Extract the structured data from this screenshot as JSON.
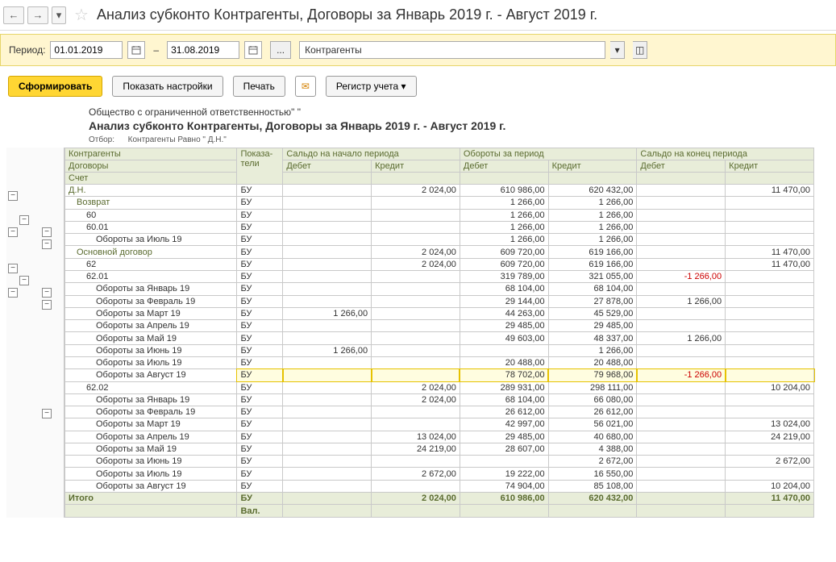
{
  "colors": {
    "header_bg": "#e8edd9",
    "header_text": "#5a6b2f",
    "neg": "#cc0000",
    "highlight_bg": "#fffde0",
    "highlight_border": "#e6c200",
    "filter_bg": "#fff6d0",
    "border": "#c9c9c9"
  },
  "nav": {
    "back": "←",
    "forward": "→",
    "dropdown": "▾"
  },
  "page_title": "Анализ субконто Контрагенты, Договоры за Январь 2019 г. - Август 2019 г.",
  "filter": {
    "period_label": "Период:",
    "date_from": "01.01.2019",
    "dash": "–",
    "date_to": "31.08.2019",
    "select_value": "Контрагенты"
  },
  "actions": {
    "form": "Сформировать",
    "settings": "Показать настройки",
    "print": "Печать",
    "register": "Регистр учета"
  },
  "report": {
    "org": "Общество с ограниченной ответственностью\"      \"",
    "title": "Анализ субконто Контрагенты, Договоры за Январь 2019 г. - Август 2019 г.",
    "filter_label": "Отбор:",
    "filter_value": "Контрагенты Равно \"           Д.Н.\""
  },
  "headers": {
    "col1_r1": "Контрагенты",
    "col1_r2": "Договоры",
    "col1_r3": "Счет",
    "col2": "Показа-\nтели",
    "g1": "Сальдо на начало периода",
    "g2": "Обороты за период",
    "g3": "Сальдо на конец периода",
    "debit": "Дебет",
    "credit": "Кредит"
  },
  "rows": [
    {
      "level": 0,
      "green": true,
      "name": "Д.Н.",
      "ind": "БУ",
      "d0": "",
      "c0": "2 024,00",
      "dt": "610 986,00",
      "kt": "620 432,00",
      "d1": "",
      "c1": "11 470,00"
    },
    {
      "level": 1,
      "green": true,
      "name": "Возврат",
      "ind": "БУ",
      "d0": "",
      "c0": "",
      "dt": "1 266,00",
      "kt": "1 266,00",
      "d1": "",
      "c1": ""
    },
    {
      "level": 2,
      "name": "60",
      "ind": "БУ",
      "d0": "",
      "c0": "",
      "dt": "1 266,00",
      "kt": "1 266,00",
      "d1": "",
      "c1": ""
    },
    {
      "level": 2,
      "name": "60.01",
      "ind": "БУ",
      "d0": "",
      "c0": "",
      "dt": "1 266,00",
      "kt": "1 266,00",
      "d1": "",
      "c1": ""
    },
    {
      "level": 3,
      "name": "Обороты за Июль 19",
      "ind": "БУ",
      "d0": "",
      "c0": "",
      "dt": "1 266,00",
      "kt": "1 266,00",
      "d1": "",
      "c1": ""
    },
    {
      "level": 1,
      "green": true,
      "name": "Основной договор",
      "ind": "БУ",
      "d0": "",
      "c0": "2 024,00",
      "dt": "609 720,00",
      "kt": "619 166,00",
      "d1": "",
      "c1": "11 470,00"
    },
    {
      "level": 2,
      "name": "62",
      "ind": "БУ",
      "d0": "",
      "c0": "2 024,00",
      "dt": "609 720,00",
      "kt": "619 166,00",
      "d1": "",
      "c1": "11 470,00"
    },
    {
      "level": 2,
      "name": "62.01",
      "ind": "БУ",
      "d0": "",
      "c0": "",
      "dt": "319 789,00",
      "kt": "321 055,00",
      "d1": "-1 266,00",
      "c1": "",
      "d1neg": true
    },
    {
      "level": 3,
      "name": "Обороты за Январь 19",
      "ind": "БУ",
      "d0": "",
      "c0": "",
      "dt": "68 104,00",
      "kt": "68 104,00",
      "d1": "",
      "c1": ""
    },
    {
      "level": 3,
      "name": "Обороты за Февраль 19",
      "ind": "БУ",
      "d0": "",
      "c0": "",
      "dt": "29 144,00",
      "kt": "27 878,00",
      "d1": "1 266,00",
      "c1": ""
    },
    {
      "level": 3,
      "name": "Обороты за Март 19",
      "ind": "БУ",
      "d0": "1 266,00",
      "c0": "",
      "dt": "44 263,00",
      "kt": "45 529,00",
      "d1": "",
      "c1": ""
    },
    {
      "level": 3,
      "name": "Обороты за Апрель 19",
      "ind": "БУ",
      "d0": "",
      "c0": "",
      "dt": "29 485,00",
      "kt": "29 485,00",
      "d1": "",
      "c1": ""
    },
    {
      "level": 3,
      "name": "Обороты за Май 19",
      "ind": "БУ",
      "d0": "",
      "c0": "",
      "dt": "49 603,00",
      "kt": "48 337,00",
      "d1": "1 266,00",
      "c1": ""
    },
    {
      "level": 3,
      "name": "Обороты за Июнь 19",
      "ind": "БУ",
      "d0": "1 266,00",
      "c0": "",
      "dt": "",
      "kt": "1 266,00",
      "d1": "",
      "c1": ""
    },
    {
      "level": 3,
      "name": "Обороты за Июль 19",
      "ind": "БУ",
      "d0": "",
      "c0": "",
      "dt": "20 488,00",
      "kt": "20 488,00",
      "d1": "",
      "c1": ""
    },
    {
      "level": 3,
      "hl": true,
      "name": "Обороты за Август 19",
      "ind": "БУ",
      "d0": "",
      "c0": "",
      "dt": "78 702,00",
      "kt": "79 968,00",
      "d1": "-1 266,00",
      "c1": "",
      "d1neg": true
    },
    {
      "level": 2,
      "name": "62.02",
      "ind": "БУ",
      "d0": "",
      "c0": "2 024,00",
      "dt": "289 931,00",
      "kt": "298 111,00",
      "d1": "",
      "c1": "10 204,00"
    },
    {
      "level": 3,
      "name": "Обороты за Январь 19",
      "ind": "БУ",
      "d0": "",
      "c0": "2 024,00",
      "dt": "68 104,00",
      "kt": "66 080,00",
      "d1": "",
      "c1": ""
    },
    {
      "level": 3,
      "name": "Обороты за Февраль 19",
      "ind": "БУ",
      "d0": "",
      "c0": "",
      "dt": "26 612,00",
      "kt": "26 612,00",
      "d1": "",
      "c1": ""
    },
    {
      "level": 3,
      "name": "Обороты за Март 19",
      "ind": "БУ",
      "d0": "",
      "c0": "",
      "dt": "42 997,00",
      "kt": "56 021,00",
      "d1": "",
      "c1": "13 024,00"
    },
    {
      "level": 3,
      "name": "Обороты за Апрель 19",
      "ind": "БУ",
      "d0": "",
      "c0": "13 024,00",
      "dt": "29 485,00",
      "kt": "40 680,00",
      "d1": "",
      "c1": "24 219,00"
    },
    {
      "level": 3,
      "name": "Обороты за Май 19",
      "ind": "БУ",
      "d0": "",
      "c0": "24 219,00",
      "dt": "28 607,00",
      "kt": "4 388,00",
      "d1": "",
      "c1": ""
    },
    {
      "level": 3,
      "name": "Обороты за Июнь 19",
      "ind": "БУ",
      "d0": "",
      "c0": "",
      "dt": "",
      "kt": "2 672,00",
      "d1": "",
      "c1": "2 672,00"
    },
    {
      "level": 3,
      "name": "Обороты за Июль 19",
      "ind": "БУ",
      "d0": "",
      "c0": "2 672,00",
      "dt": "19 222,00",
      "kt": "16 550,00",
      "d1": "",
      "c1": ""
    },
    {
      "level": 3,
      "name": "Обороты за Август 19",
      "ind": "БУ",
      "d0": "",
      "c0": "",
      "dt": "74 904,00",
      "kt": "85 108,00",
      "d1": "",
      "c1": "10 204,00"
    }
  ],
  "totals": [
    {
      "name": "Итого",
      "ind": "БУ",
      "d0": "",
      "c0": "2 024,00",
      "dt": "610 986,00",
      "kt": "620 432,00",
      "d1": "",
      "c1": "11 470,00"
    },
    {
      "name": "",
      "ind": "Вал.",
      "d0": "",
      "c0": "",
      "dt": "",
      "kt": "",
      "d1": "",
      "c1": ""
    }
  ],
  "tree": [
    [
      0
    ],
    [],
    [
      1
    ],
    [
      0,
      2
    ],
    [
      3
    ],
    [],
    [
      0
    ],
    [
      1
    ],
    [
      0,
      2
    ],
    [
      3
    ],
    [],
    [],
    [],
    [],
    [],
    [],
    [],
    [],
    [
      3
    ],
    [],
    [],
    [],
    [],
    [],
    [],
    [],
    []
  ]
}
